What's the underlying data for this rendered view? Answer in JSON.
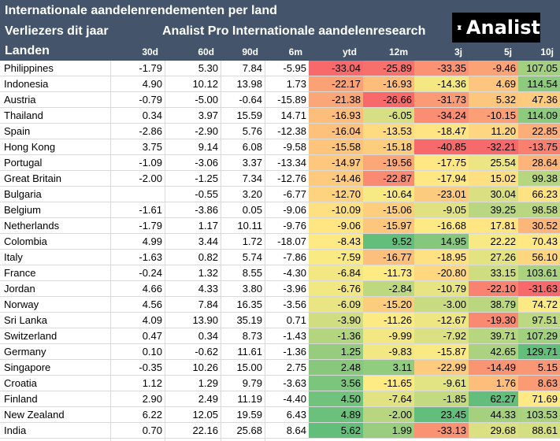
{
  "header": {
    "title": "Internationale aandelenrendementen per land",
    "subtitle": "Verliezers dit jaar",
    "research": "Analist Pro Internationale aandelenresearch",
    "landen": "Landen",
    "logo_text": "Analist"
  },
  "columns": [
    "30d",
    "60d",
    "90d",
    "6m",
    "ytd",
    "12m",
    "3j",
    "5j",
    "10j"
  ],
  "rows": [
    {
      "name": "Philippines",
      "v": [
        "-1.79",
        "5.30",
        "7.84",
        "-5.95",
        "-33.04",
        "-25.89",
        "-33.35",
        "-9.46",
        "107.05"
      ]
    },
    {
      "name": "Indonesia",
      "v": [
        "4.90",
        "10.12",
        "13.98",
        "1.73",
        "-22.17",
        "-16.93",
        "-14.36",
        "4.69",
        "114.54"
      ]
    },
    {
      "name": "Austria",
      "v": [
        "-0.79",
        "-5.00",
        "-0.64",
        "-15.89",
        "-21.38",
        "-26.66",
        "-31.73",
        "5.32",
        "47.36"
      ]
    },
    {
      "name": "Thailand",
      "v": [
        "0.34",
        "3.97",
        "15.59",
        "14.71",
        "-16.93",
        "-6.05",
        "-34.24",
        "-10.15",
        "114.09"
      ]
    },
    {
      "name": "Spain",
      "v": [
        "-2.86",
        "-2.90",
        "5.76",
        "-12.38",
        "-16.04",
        "-13.53",
        "-18.47",
        "11.20",
        "22.85"
      ]
    },
    {
      "name": "Hong Kong",
      "v": [
        "3.75",
        "9.14",
        "6.08",
        "-9.58",
        "-15.58",
        "-15.18",
        "-40.85",
        "-32.21",
        "-13.75"
      ]
    },
    {
      "name": "Portugal",
      "v": [
        "-1.09",
        "-3.06",
        "3.37",
        "-13.34",
        "-14.97",
        "-19.56",
        "-17.75",
        "25.54",
        "28.64"
      ]
    },
    {
      "name": "Great Britain",
      "v": [
        "-2.00",
        "-1.25",
        "7.34",
        "-12.76",
        "-14.46",
        "-22.87",
        "-17.94",
        "15.02",
        "99.38"
      ]
    },
    {
      "name": "Bulgaria",
      "v": [
        "",
        "-0.55",
        "3.20",
        "-6.77",
        "-12.70",
        "-10.64",
        "-23.01",
        "30.04",
        "66.23"
      ]
    },
    {
      "name": "Belgium",
      "v": [
        "-1.61",
        "-3.86",
        "0.05",
        "-9.06",
        "-10.09",
        "-15.06",
        "-9.05",
        "39.25",
        "98.58"
      ]
    },
    {
      "name": "Netherlands",
      "v": [
        "-1.79",
        "1.17",
        "10.11",
        "-9.76",
        "-9.06",
        "-15.97",
        "-16.68",
        "17.81",
        "30.52"
      ]
    },
    {
      "name": "Colombia",
      "v": [
        "4.99",
        "3.44",
        "1.72",
        "-18.07",
        "-8.43",
        "9.52",
        "14.95",
        "22.22",
        "70.43"
      ]
    },
    {
      "name": "Italy",
      "v": [
        "-1.63",
        "0.82",
        "5.74",
        "-7.86",
        "-7.59",
        "-16.77",
        "-18.95",
        "27.26",
        "56.10"
      ]
    },
    {
      "name": "France",
      "v": [
        "-0.24",
        "1.32",
        "8.55",
        "-4.30",
        "-6.84",
        "-11.73",
        "-20.80",
        "33.15",
        "103.61"
      ]
    },
    {
      "name": "Jordan",
      "v": [
        "4.66",
        "4.33",
        "3.80",
        "-3.96",
        "-6.76",
        "-2.84",
        "-10.79",
        "-22.10",
        "-31.63"
      ]
    },
    {
      "name": "Norway",
      "v": [
        "4.56",
        "7.84",
        "16.35",
        "-3.56",
        "-6.09",
        "-15.20",
        "-3.00",
        "38.79",
        "74.72"
      ]
    },
    {
      "name": "Sri Lanka",
      "v": [
        "4.09",
        "13.90",
        "35.19",
        "0.71",
        "-3.90",
        "-11.26",
        "-12.67",
        "-19.30",
        "97.51"
      ]
    },
    {
      "name": "Switzerland",
      "v": [
        "0.47",
        "0.34",
        "8.73",
        "-1.43",
        "-1.36",
        "-9.99",
        "-7.92",
        "39.71",
        "107.29"
      ]
    },
    {
      "name": "Germany",
      "v": [
        "0.10",
        "-0.62",
        "11.61",
        "-1.36",
        "1.25",
        "-9.83",
        "-15.87",
        "42.65",
        "129.71"
      ]
    },
    {
      "name": "Singapore",
      "v": [
        "-0.35",
        "10.26",
        "15.00",
        "2.75",
        "2.48",
        "3.11",
        "-22.99",
        "-14.49",
        "5.15"
      ]
    },
    {
      "name": "Croatia",
      "v": [
        "1.12",
        "1.29",
        "9.79",
        "-3.63",
        "3.56",
        "-11.65",
        "-9.61",
        "1.76",
        "8.63"
      ]
    },
    {
      "name": "Finland",
      "v": [
        "2.90",
        "2.49",
        "11.19",
        "-4.40",
        "4.50",
        "-7.64",
        "-1.85",
        "62.27",
        "71.69"
      ]
    },
    {
      "name": "New Zealand",
      "v": [
        "6.22",
        "12.05",
        "19.59",
        "6.43",
        "4.89",
        "-2.00",
        "23.45",
        "44.33",
        "103.53"
      ]
    },
    {
      "name": "India",
      "v": [
        "0.70",
        "22.16",
        "25.68",
        "8.64",
        "5.62",
        "1.99",
        "-33.13",
        "29.68",
        "88.61"
      ]
    }
  ]
}
